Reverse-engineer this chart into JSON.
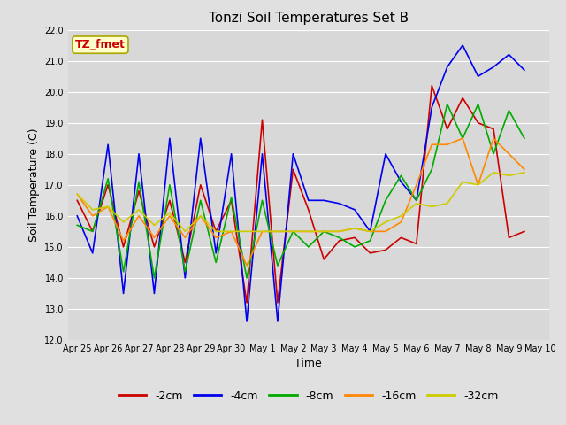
{
  "title": "Tonzi Soil Temperatures Set B",
  "xlabel": "Time",
  "ylabel": "Soil Temperature (C)",
  "ylim": [
    12.0,
    22.0
  ],
  "yticks": [
    12.0,
    13.0,
    14.0,
    15.0,
    16.0,
    17.0,
    18.0,
    19.0,
    20.0,
    21.0,
    22.0
  ],
  "fig_facecolor": "#e0e0e0",
  "plot_bg_color": "#d8d8d8",
  "annotation_label": "TZ_fmet",
  "annotation_color": "#cc0000",
  "annotation_bg": "#ffffcc",
  "annotation_edge": "#aaa800",
  "x_labels": [
    "Apr 25",
    "Apr 26",
    "Apr 27",
    "Apr 28",
    "Apr 29",
    "Apr 30",
    "May 1",
    "May 2",
    "May 3",
    "May 4",
    "May 5",
    "May 6",
    "May 7",
    "May 8",
    "May 9",
    "May 10"
  ],
  "series_order": [
    "-2cm",
    "-4cm",
    "-8cm",
    "-16cm",
    "-32cm"
  ],
  "series": {
    "-2cm": {
      "color": "#cc0000",
      "linewidth": 1.2,
      "data_x": [
        0,
        0.5,
        1,
        1.5,
        2,
        2.5,
        3,
        3.5,
        4,
        4.5,
        5,
        5.5,
        6,
        6.5,
        7,
        7.5,
        8,
        8.5,
        9,
        9.5,
        10,
        10.5,
        11,
        11.5,
        12,
        12.5,
        13,
        13.5,
        14,
        14.5
      ],
      "data_y": [
        16.5,
        15.5,
        17.0,
        15.0,
        16.8,
        15.0,
        16.5,
        14.5,
        17.0,
        15.5,
        16.5,
        13.2,
        19.1,
        13.2,
        17.5,
        16.2,
        14.6,
        15.2,
        15.3,
        14.8,
        14.9,
        15.3,
        15.1,
        20.2,
        18.8,
        19.8,
        19.0,
        18.8,
        15.3,
        15.5
      ]
    },
    "-4cm": {
      "color": "#0000ee",
      "linewidth": 1.2,
      "data_x": [
        0,
        0.5,
        1,
        1.5,
        2,
        2.5,
        3,
        3.5,
        4,
        4.5,
        5,
        5.5,
        6,
        6.5,
        7,
        7.5,
        8,
        8.5,
        9,
        9.5,
        10,
        10.5,
        11,
        11.5,
        12,
        12.5,
        13,
        13.5,
        14,
        14.5
      ],
      "data_y": [
        16.0,
        14.8,
        18.3,
        13.5,
        18.0,
        13.5,
        18.5,
        14.0,
        18.5,
        14.8,
        18.0,
        12.6,
        18.0,
        12.6,
        18.0,
        16.5,
        16.5,
        16.4,
        16.2,
        15.5,
        18.0,
        17.1,
        16.5,
        19.5,
        20.8,
        21.5,
        20.5,
        20.8,
        21.2,
        20.7
      ]
    },
    "-8cm": {
      "color": "#00aa00",
      "linewidth": 1.2,
      "data_x": [
        0,
        0.5,
        1,
        1.5,
        2,
        2.5,
        3,
        3.5,
        4,
        4.5,
        5,
        5.5,
        6,
        6.5,
        7,
        7.5,
        8,
        8.5,
        9,
        9.5,
        10,
        10.5,
        11,
        11.5,
        12,
        12.5,
        13,
        13.5,
        14,
        14.5
      ],
      "data_y": [
        15.7,
        15.5,
        17.2,
        14.2,
        17.1,
        14.0,
        17.0,
        14.2,
        16.5,
        14.5,
        16.6,
        14.0,
        16.5,
        14.4,
        15.5,
        15.0,
        15.5,
        15.3,
        15.0,
        15.2,
        16.5,
        17.3,
        16.5,
        17.5,
        19.6,
        18.5,
        19.6,
        18.0,
        19.4,
        18.5
      ]
    },
    "-16cm": {
      "color": "#ff8800",
      "linewidth": 1.2,
      "data_x": [
        0,
        0.5,
        1,
        1.5,
        2,
        2.5,
        3,
        3.5,
        4,
        4.5,
        5,
        5.5,
        6,
        6.5,
        7,
        7.5,
        8,
        8.5,
        9,
        9.5,
        10,
        10.5,
        11,
        11.5,
        12,
        12.5,
        13,
        13.5,
        14,
        14.5
      ],
      "data_y": [
        16.7,
        16.0,
        16.3,
        15.2,
        16.0,
        15.3,
        16.0,
        15.3,
        16.0,
        15.3,
        15.5,
        14.4,
        15.5,
        15.5,
        15.5,
        15.5,
        15.5,
        15.5,
        15.6,
        15.5,
        15.5,
        15.8,
        17.0,
        18.3,
        18.3,
        18.5,
        17.0,
        18.5,
        18.0,
        17.5
      ]
    },
    "-32cm": {
      "color": "#cccc00",
      "linewidth": 1.2,
      "data_x": [
        0,
        0.5,
        1,
        1.5,
        2,
        2.5,
        3,
        3.5,
        4,
        4.5,
        5,
        5.5,
        6,
        6.5,
        7,
        7.5,
        8,
        8.5,
        9,
        9.5,
        10,
        10.5,
        11,
        11.5,
        12,
        12.5,
        13,
        13.5,
        14,
        14.5
      ],
      "data_y": [
        16.7,
        16.2,
        16.3,
        15.8,
        16.2,
        15.7,
        16.1,
        15.5,
        16.0,
        15.5,
        15.5,
        15.5,
        15.5,
        15.5,
        15.5,
        15.5,
        15.5,
        15.5,
        15.6,
        15.5,
        15.8,
        16.0,
        16.4,
        16.3,
        16.4,
        17.1,
        17.0,
        17.4,
        17.3,
        17.4
      ]
    }
  },
  "legend_entries": [
    "-2cm",
    "-4cm",
    "-8cm",
    "-16cm",
    "-32cm"
  ],
  "legend_colors": [
    "#cc0000",
    "#0000ee",
    "#00aa00",
    "#ff8800",
    "#cccc00"
  ],
  "title_fontsize": 11,
  "tick_fontsize": 7,
  "axis_label_fontsize": 9,
  "legend_fontsize": 9
}
